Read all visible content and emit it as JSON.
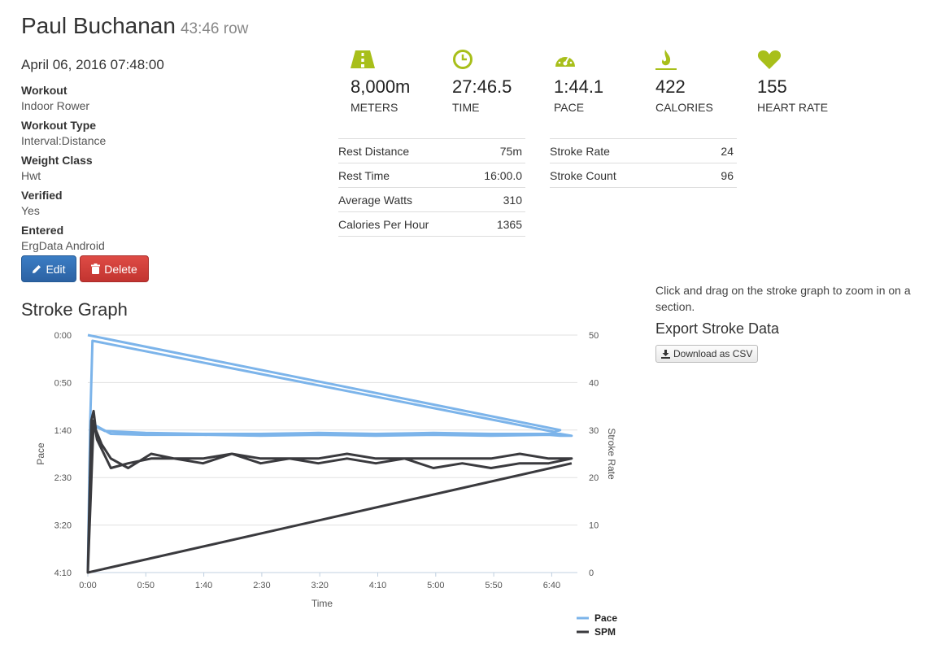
{
  "header": {
    "name": "Paul Buchanan",
    "summary": "43:46 row"
  },
  "date": "April 06, 2016 07:48:00",
  "details": [
    {
      "key": "Workout",
      "value": "Indoor Rower"
    },
    {
      "key": "Workout Type",
      "value": "Interval:Distance"
    },
    {
      "key": "Weight Class",
      "value": "Hwt"
    },
    {
      "key": "Verified",
      "value": "Yes"
    },
    {
      "key": "Entered",
      "value": "ErgData Android"
    }
  ],
  "buttons": {
    "edit": "Edit",
    "delete": "Delete"
  },
  "stats": [
    {
      "icon": "road-icon",
      "value": "8,000m",
      "label": "Meters"
    },
    {
      "icon": "clock-icon",
      "value": "27:46.5",
      "label": "Time"
    },
    {
      "icon": "speedometer-icon",
      "value": "1:44.1",
      "label": "Pace"
    },
    {
      "icon": "flame-icon",
      "value": "422",
      "label": "Calories"
    },
    {
      "icon": "heart-icon",
      "value": "155",
      "label": "Heart Rate"
    }
  ],
  "table_left": [
    {
      "key": "Rest Distance",
      "value": "75m"
    },
    {
      "key": "Rest Time",
      "value": "16:00.0"
    },
    {
      "key": "Average Watts",
      "value": "310"
    },
    {
      "key": "Calories Per Hour",
      "value": "1365"
    }
  ],
  "table_right": [
    {
      "key": "Stroke Rate",
      "value": "24"
    },
    {
      "key": "Stroke Count",
      "value": "96"
    }
  ],
  "help_text": "Click and drag on the stroke graph to zoom in on a section.",
  "export": {
    "title": "Export Stroke Data",
    "button": "Download as CSV"
  },
  "accent_color": "#a8bf1a",
  "chart_data": {
    "type": "line",
    "title": "Stroke Graph",
    "xlabel": "Time",
    "ylabel": "Pace",
    "y2label": "Stroke Rate",
    "x_ticks": [
      "0:00",
      "0:50",
      "1:40",
      "2:30",
      "3:20",
      "4:10",
      "5:00",
      "5:50",
      "6:40"
    ],
    "y_ticks": [
      "0:00",
      "0:50",
      "1:40",
      "2:30",
      "3:20",
      "4:10"
    ],
    "y2_ticks": [
      "50",
      "40",
      "30",
      "20",
      "10",
      "0"
    ],
    "xlim": [
      0,
      425
    ],
    "ylim": [
      0,
      250
    ],
    "y2lim": [
      0,
      50
    ],
    "series": [
      {
        "name": "Pace",
        "axis": "left",
        "color": "#7cb4ea",
        "points": [
          [
            0,
            0
          ],
          [
            410,
            100
          ],
          [
            405,
            102
          ],
          [
            4,
            6
          ],
          [
            2,
            95
          ],
          [
            8,
            96
          ],
          [
            20,
            104
          ],
          [
            50,
            105
          ],
          [
            100,
            105
          ],
          [
            150,
            106
          ],
          [
            200,
            105
          ],
          [
            250,
            106
          ],
          [
            300,
            105
          ],
          [
            350,
            106
          ],
          [
            400,
            105
          ],
          [
            410,
            106
          ],
          [
            420,
            106
          ],
          [
            410,
            104
          ],
          [
            350,
            104
          ],
          [
            300,
            103
          ],
          [
            250,
            104
          ],
          [
            200,
            103
          ],
          [
            150,
            104
          ],
          [
            100,
            104
          ],
          [
            50,
            103
          ],
          [
            15,
            101
          ],
          [
            8,
            97
          ],
          [
            2,
            95
          ],
          [
            0,
            250
          ]
        ]
      },
      {
        "name": "SPM",
        "axis": "right",
        "color": "#3a3a3e",
        "points": [
          [
            0,
            0
          ],
          [
            5,
            32
          ],
          [
            8,
            28
          ],
          [
            12,
            26
          ],
          [
            20,
            22
          ],
          [
            35,
            23
          ],
          [
            55,
            24
          ],
          [
            75,
            24
          ],
          [
            100,
            23
          ],
          [
            125,
            25
          ],
          [
            150,
            24
          ],
          [
            175,
            24
          ],
          [
            200,
            23
          ],
          [
            225,
            24
          ],
          [
            250,
            23
          ],
          [
            275,
            24
          ],
          [
            300,
            24
          ],
          [
            325,
            24
          ],
          [
            350,
            24
          ],
          [
            375,
            25
          ],
          [
            400,
            24
          ],
          [
            420,
            24
          ],
          [
            400,
            23
          ],
          [
            375,
            23
          ],
          [
            350,
            22
          ],
          [
            325,
            23
          ],
          [
            300,
            22
          ],
          [
            275,
            24
          ],
          [
            250,
            24
          ],
          [
            225,
            25
          ],
          [
            200,
            24
          ],
          [
            175,
            24
          ],
          [
            150,
            23
          ],
          [
            125,
            25
          ],
          [
            100,
            24
          ],
          [
            75,
            24
          ],
          [
            55,
            25
          ],
          [
            35,
            22
          ],
          [
            20,
            24
          ],
          [
            12,
            27
          ],
          [
            7,
            30
          ],
          [
            5,
            34
          ],
          [
            3,
            32
          ],
          [
            0,
            0
          ],
          [
            420,
            23
          ]
        ]
      }
    ],
    "legend": {
      "position": "bottom-right"
    }
  }
}
